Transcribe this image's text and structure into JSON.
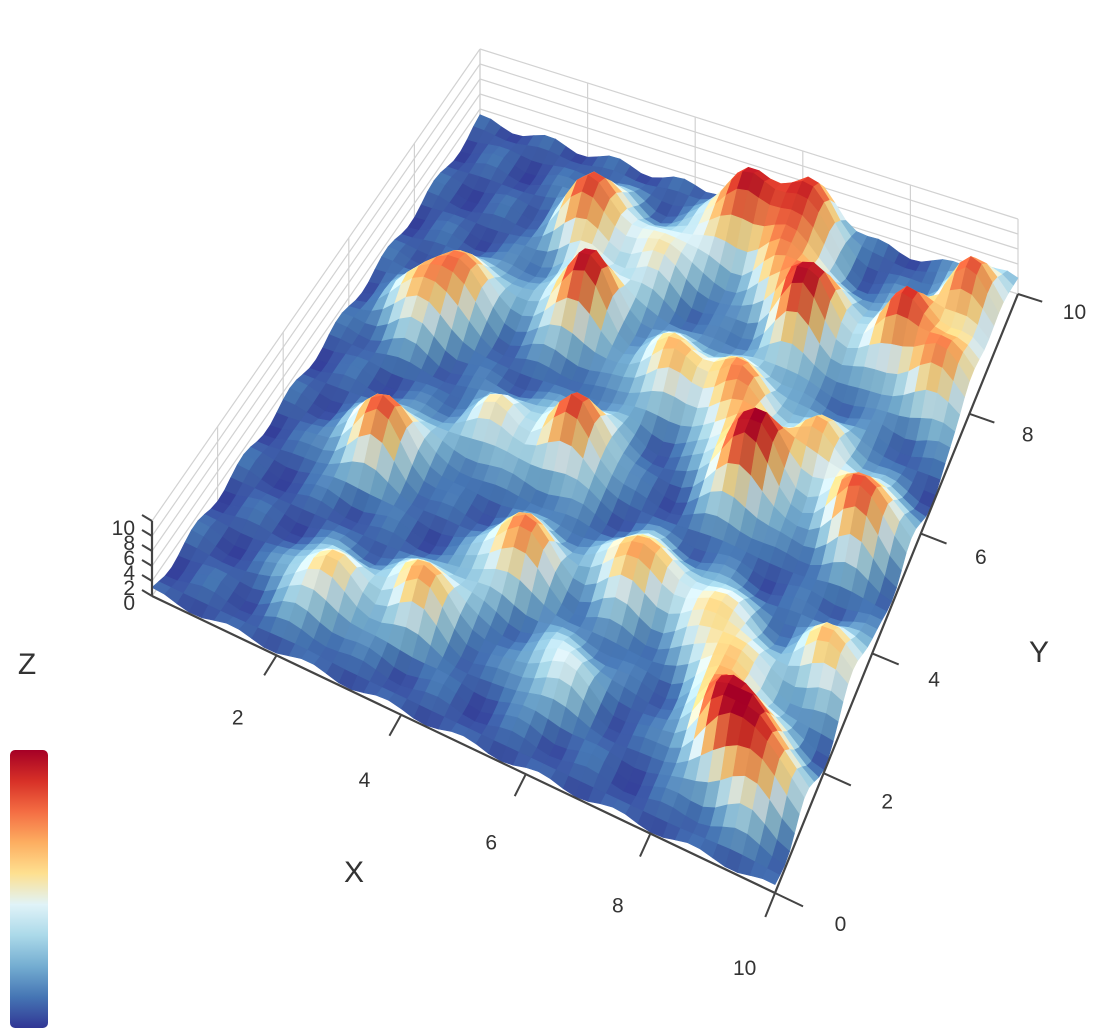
{
  "chart_data": {
    "type": "surface",
    "title": "",
    "colorscale": [
      "#313695",
      "#4575b4",
      "#74add1",
      "#abd9e9",
      "#e0f3f8",
      "#fee090",
      "#fdae61",
      "#f46d43",
      "#d73027",
      "#a50026"
    ],
    "x": {
      "label": "X",
      "range": [
        0,
        10
      ],
      "ticks": [
        "2",
        "4",
        "6",
        "8",
        "10"
      ]
    },
    "y": {
      "label": "Y",
      "range": [
        0,
        10
      ],
      "ticks": [
        "0",
        "2",
        "4",
        "6",
        "8",
        "10"
      ]
    },
    "z": {
      "label": "Z",
      "range": [
        0,
        10
      ],
      "ticks": [
        "10",
        "8",
        "6",
        "4",
        "2",
        "0"
      ]
    },
    "grid": true,
    "colorbar": {
      "placement": "left",
      "tick_labels": false
    },
    "surface_peaks": [
      {
        "x": 7.2,
        "y": 5.6,
        "z": 10.0
      },
      {
        "x": 5.2,
        "y": 9.4,
        "z": 9.0
      },
      {
        "x": 3.5,
        "y": 7.2,
        "z": 9.5
      },
      {
        "x": 2.9,
        "y": 8.6,
        "z": 8.5
      },
      {
        "x": 6.3,
        "y": 9.6,
        "z": 8.0
      },
      {
        "x": 7.0,
        "y": 8.2,
        "z": 9.5
      },
      {
        "x": 8.6,
        "y": 1.6,
        "z": 9.0
      },
      {
        "x": 1.8,
        "y": 3.8,
        "z": 8.0
      },
      {
        "x": 4.6,
        "y": 2.9,
        "z": 7.5
      },
      {
        "x": 4.5,
        "y": 5.0,
        "z": 8.0
      },
      {
        "x": 9.2,
        "y": 5.5,
        "z": 8.5
      },
      {
        "x": 6.3,
        "y": 3.4,
        "z": 7.0
      },
      {
        "x": 8.6,
        "y": 8.4,
        "z": 8.0
      },
      {
        "x": 9.3,
        "y": 1.2,
        "z": 7.5
      },
      {
        "x": 9.5,
        "y": 9.3,
        "z": 7.5
      },
      {
        "x": 3.6,
        "y": 1.6,
        "z": 6.5
      },
      {
        "x": 9.6,
        "y": 8.0,
        "z": 6.5
      },
      {
        "x": 6.5,
        "y": 6.6,
        "z": 7.0
      },
      {
        "x": 1.2,
        "y": 6.3,
        "z": 6.0
      },
      {
        "x": 5.3,
        "y": 6.7,
        "z": 6.0
      },
      {
        "x": 8.1,
        "y": 6.3,
        "z": 5.5
      },
      {
        "x": 2.2,
        "y": 1.2,
        "z": 5.5
      },
      {
        "x": 4.3,
        "y": 8.4,
        "z": 5.0
      },
      {
        "x": 8.2,
        "y": 2.6,
        "z": 5.0
      },
      {
        "x": 1.7,
        "y": 6.8,
        "z": 5.0
      },
      {
        "x": 9.6,
        "y": 3.3,
        "z": 6.0
      },
      {
        "x": 6.2,
        "y": 8.8,
        "z": 4.5
      },
      {
        "x": 7.6,
        "y": 3.3,
        "z": 4.5
      },
      {
        "x": 3.2,
        "y": 4.8,
        "z": 4.5
      },
      {
        "x": 5.9,
        "y": 1.5,
        "z": 4.0
      }
    ]
  }
}
